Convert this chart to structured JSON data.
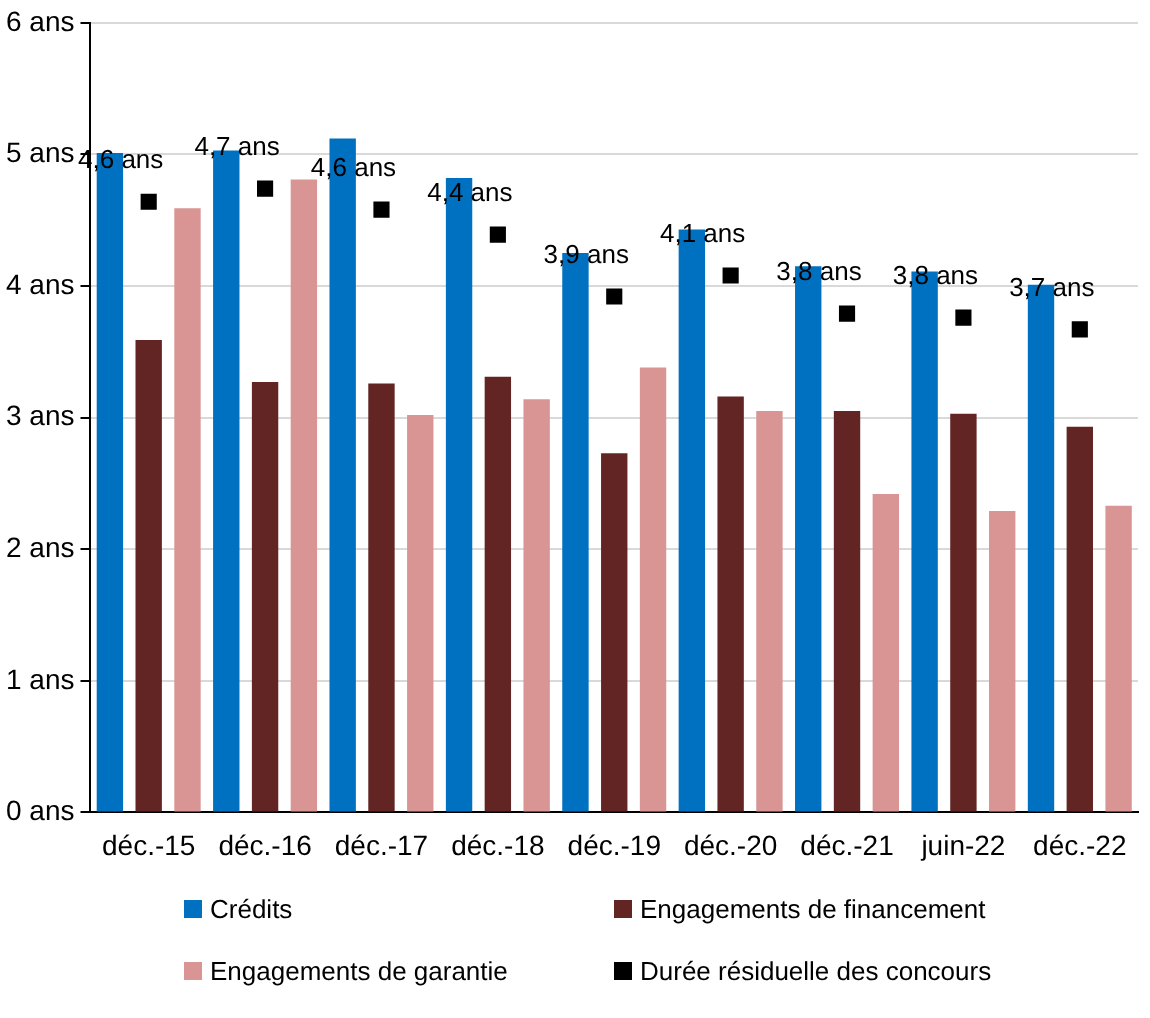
{
  "chart_data": {
    "type": "bar",
    "categories": [
      "déc.-15",
      "déc.-16",
      "déc.-17",
      "déc.-18",
      "déc.-19",
      "déc.-20",
      "déc.-21",
      "juin-22",
      "déc.-22"
    ],
    "series": [
      {
        "name": "Crédits",
        "color": "#0070c0",
        "values": [
          5.01,
          5.03,
          5.12,
          4.82,
          4.25,
          4.43,
          4.15,
          4.11,
          4.01
        ]
      },
      {
        "name": "Engagements de financement",
        "color": "#632523",
        "values": [
          3.59,
          3.27,
          3.26,
          3.31,
          2.73,
          3.16,
          3.05,
          3.03,
          2.93
        ]
      },
      {
        "name": "Engagements de garantie",
        "color": "#d99594",
        "values": [
          4.59,
          4.81,
          3.02,
          3.14,
          3.38,
          3.05,
          2.42,
          2.29,
          2.33
        ]
      },
      {
        "name": "Durée résiduelle des concours",
        "color": "#000000",
        "type": "scatter",
        "marker": "square",
        "values": [
          4.64,
          4.74,
          4.58,
          4.39,
          3.92,
          4.08,
          3.79,
          3.76,
          3.67
        ],
        "value_labels": [
          "4,6 ans",
          "4,7 ans",
          "4,6 ans",
          "4,4 ans",
          "3,9 ans",
          "4,1 ans",
          "3,8 ans",
          "3,8 ans",
          "3,7 ans"
        ]
      }
    ],
    "ylim": [
      0,
      6
    ],
    "yticks": [
      {
        "value": 0,
        "label": "0 ans"
      },
      {
        "value": 1,
        "label": "1 ans"
      },
      {
        "value": 2,
        "label": "2 ans"
      },
      {
        "value": 3,
        "label": "3 ans"
      },
      {
        "value": 4,
        "label": "4 ans"
      },
      {
        "value": 5,
        "label": "5 ans"
      },
      {
        "value": 6,
        "label": "6 ans"
      }
    ],
    "grid": "y",
    "legend": "bottom"
  }
}
